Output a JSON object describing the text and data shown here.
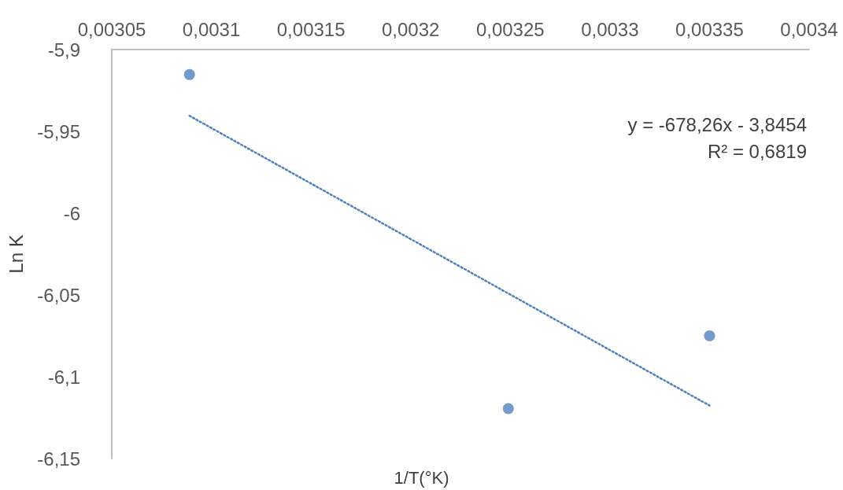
{
  "chart_data": {
    "type": "scatter",
    "xlabel": "1/T(°K)",
    "ylabel": "Ln K",
    "annotations": [
      "y = -678,26x - 3,8454",
      "R² = 0,6819"
    ],
    "series": [
      {
        "color": "#4f81bd",
        "x": [
          0.003089,
          0.003249,
          0.00335
        ],
        "values": [
          -5.9153,
          -6.1195,
          -6.075
        ],
        "marker": "circle"
      },
      {
        "type": "line",
        "color": "#4f81bd",
        "x": [
          0.003089,
          0.00335
        ],
        "values": [
          -5.9405,
          -6.1176
        ],
        "line_style": "dotted",
        "marker": "none"
      }
    ],
    "xlim": [
      0.00305,
      0.0034
    ],
    "xticks": [
      {
        "value": 0.00305,
        "label": "0,00305"
      },
      {
        "value": 0.0031,
        "label": "0,0031"
      },
      {
        "value": 0.00315,
        "label": "0,00315"
      },
      {
        "value": 0.0032,
        "label": "0,0032"
      },
      {
        "value": 0.00325,
        "label": "0,00325"
      },
      {
        "value": 0.0033,
        "label": "0,0033"
      },
      {
        "value": 0.00335,
        "label": "0,00335"
      },
      {
        "value": 0.0034,
        "label": "0,0034"
      }
    ],
    "ylim": [
      -6.15,
      -5.9
    ],
    "yticks": [
      {
        "value": -6.15,
        "label": "-6,15"
      },
      {
        "value": -6.1,
        "label": "-6,1"
      },
      {
        "value": -6.05,
        "label": "-6,05"
      },
      {
        "value": -6,
        "label": "-6"
      },
      {
        "value": -5.95,
        "label": "-5,95"
      },
      {
        "value": -5.9,
        "label": "-5,9"
      }
    ],
    "grid": false
  }
}
